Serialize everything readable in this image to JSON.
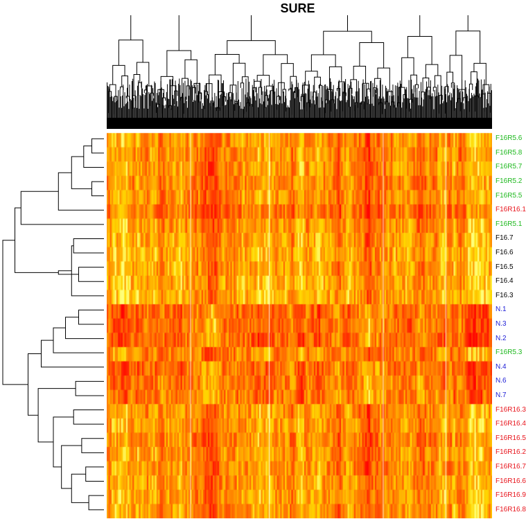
{
  "chart_data": {
    "type": "heatmap",
    "title": "SURE",
    "xlabel": "",
    "ylabel": "",
    "legend": "none",
    "color_scale": [
      "#ff0000",
      "#ff8c00",
      "#ffff00"
    ],
    "rows": [
      {
        "label": "F16R5.6",
        "group": "F16R5",
        "base": 0.55
      },
      {
        "label": "F16R5.8",
        "group": "F16R5",
        "base": 0.52
      },
      {
        "label": "F16R5.7",
        "group": "F16R5",
        "base": 0.56
      },
      {
        "label": "F16R5.2",
        "group": "F16R5",
        "base": 0.5
      },
      {
        "label": "F16R5.5",
        "group": "F16R5",
        "base": 0.53
      },
      {
        "label": "F16R16.1",
        "group": "F16R16",
        "base": 0.42
      },
      {
        "label": "F16R5.1",
        "group": "F16R5",
        "base": 0.55
      },
      {
        "label": "F16.7",
        "group": "F16",
        "base": 0.6
      },
      {
        "label": "F16.6",
        "group": "F16",
        "base": 0.62
      },
      {
        "label": "F16.5",
        "group": "F16",
        "base": 0.58
      },
      {
        "label": "F16.4",
        "group": "F16",
        "base": 0.63
      },
      {
        "label": "F16.3",
        "group": "F16",
        "base": 0.65
      },
      {
        "label": "N.1",
        "group": "N",
        "base": 0.45
      },
      {
        "label": "N.3",
        "group": "N",
        "base": 0.46
      },
      {
        "label": "N.2",
        "group": "N",
        "base": 0.44
      },
      {
        "label": "F16R5.3",
        "group": "F16R5",
        "base": 0.5
      },
      {
        "label": "N.4",
        "group": "N",
        "base": 0.48
      },
      {
        "label": "N.6",
        "group": "N",
        "base": 0.5
      },
      {
        "label": "N.7",
        "group": "N",
        "base": 0.52
      },
      {
        "label": "F16R16.3",
        "group": "F16R16",
        "base": 0.55
      },
      {
        "label": "F16R16.4",
        "group": "F16R16",
        "base": 0.57
      },
      {
        "label": "F16R16.5",
        "group": "F16R16",
        "base": 0.5
      },
      {
        "label": "F16R16.2",
        "group": "F16R16",
        "base": 0.55
      },
      {
        "label": "F16R16.7",
        "group": "F16R16",
        "base": 0.52
      },
      {
        "label": "F16R16.6",
        "group": "F16R16",
        "base": 0.56
      },
      {
        "label": "F16R16.9",
        "group": "F16R16",
        "base": 0.58
      },
      {
        "label": "F16R16.8",
        "group": "F16R16",
        "base": 0.57
      }
    ],
    "group_colors": {
      "F16R5": "#1db81d",
      "F16R16": "#e8131b",
      "F16": "#000000",
      "N": "#1c1cd6"
    },
    "row_dendrogram": {
      "max_height": 1.0,
      "merges": [
        [
          0,
          1,
          0.12
        ],
        [
          3,
          4,
          0.12
        ],
        [
          100,
          2,
          0.2
        ],
        [
          101,
          102,
          0.32
        ],
        [
          103,
          5,
          0.45
        ],
        [
          104,
          6,
          0.82
        ],
        [
          7,
          8,
          0.3
        ],
        [
          9,
          10,
          0.25
        ],
        [
          106,
          11,
          0.32
        ],
        [
          107,
          108,
          0.45
        ],
        [
          105,
          109,
          0.88
        ],
        [
          12,
          13,
          0.25
        ],
        [
          111,
          14,
          0.38
        ],
        [
          112,
          15,
          0.5
        ],
        [
          113,
          16,
          0.62
        ],
        [
          17,
          18,
          0.28
        ],
        [
          19,
          20,
          0.3
        ],
        [
          21,
          22,
          0.22
        ],
        [
          23,
          24,
          0.18
        ],
        [
          25,
          26,
          0.15
        ],
        [
          118,
          119,
          0.32
        ],
        [
          117,
          120,
          0.42
        ],
        [
          116,
          121,
          0.5
        ],
        [
          115,
          122,
          0.65
        ],
        [
          114,
          123,
          0.75
        ],
        [
          110,
          124,
          1.0
        ]
      ]
    },
    "column_count": 240,
    "column_dendrogram_levels": 7
  }
}
